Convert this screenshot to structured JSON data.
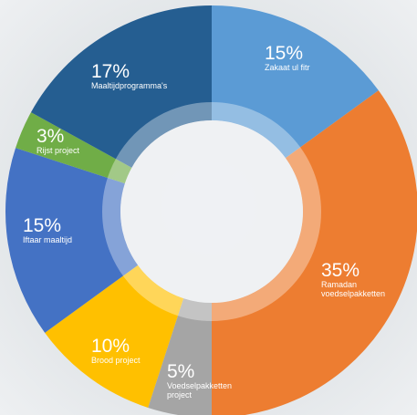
{
  "chart_data": {
    "type": "donut",
    "categories": [
      "Zakaat ul fitr",
      "Ramadan voedselpakketten",
      "Voedselpakketten project",
      "Brood project",
      "Iftaar maaltijd",
      "Rijst project",
      "Maaltijdprogramma's"
    ],
    "values": [
      15,
      35,
      5,
      10,
      15,
      3,
      17
    ],
    "value_labels": [
      "15%",
      "35%",
      "5%",
      "10%",
      "15%",
      "3%",
      "17%"
    ],
    "colors": [
      "#5b9bd5",
      "#ed7d31",
      "#a5a5a5",
      "#ffc000",
      "#4472c4",
      "#70ad47",
      "#255e91"
    ]
  }
}
